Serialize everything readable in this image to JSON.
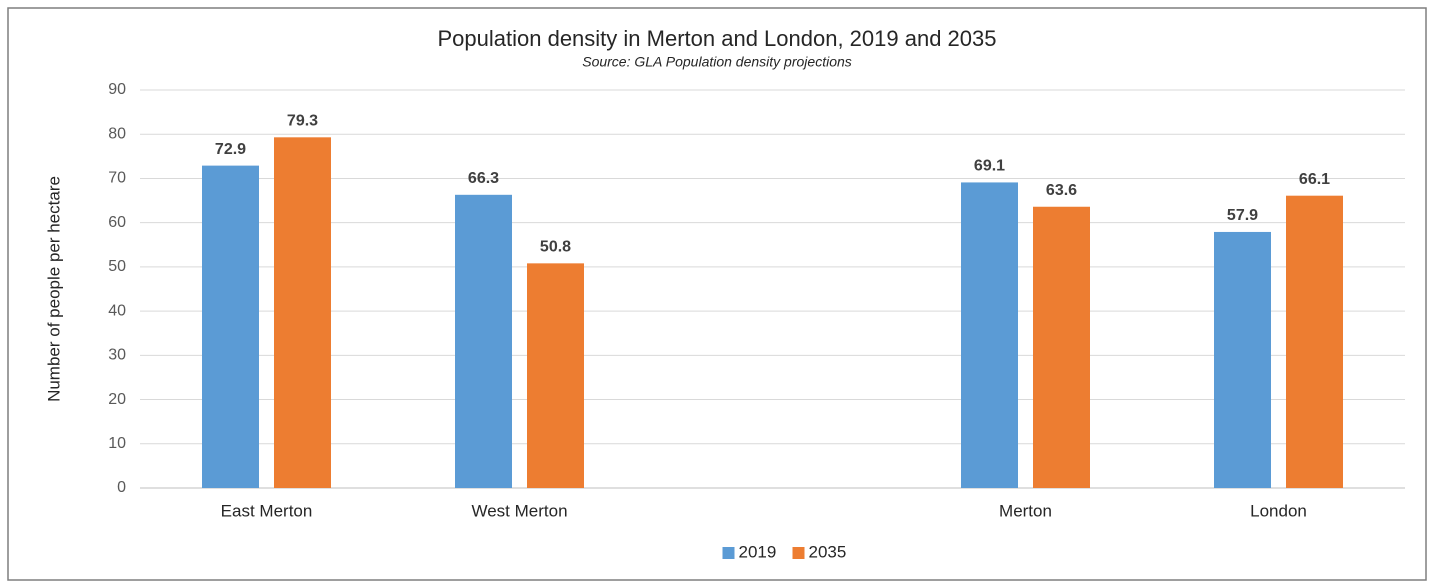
{
  "chart_data": {
    "type": "bar",
    "title": "Population density in Merton and London, 2019 and 2035",
    "subtitle": "Source: GLA Population density projections",
    "y_label": "Number of people  per hectare",
    "categories": [
      "East Merton",
      "West Merton",
      null,
      "Merton",
      "London"
    ],
    "series": [
      {
        "name": "2019",
        "color": "#5b9bd5",
        "values": [
          72.9,
          66.3,
          null,
          69.1,
          57.9
        ]
      },
      {
        "name": "2035",
        "color": "#ed7d31",
        "values": [
          79.3,
          50.8,
          null,
          63.6,
          66.1
        ]
      }
    ],
    "ylim": [
      0,
      90
    ],
    "yticks": [
      0,
      10,
      20,
      30,
      40,
      50,
      60,
      70,
      80,
      90
    ],
    "grid": true,
    "legend": "bottom",
    "data_labels": true
  }
}
